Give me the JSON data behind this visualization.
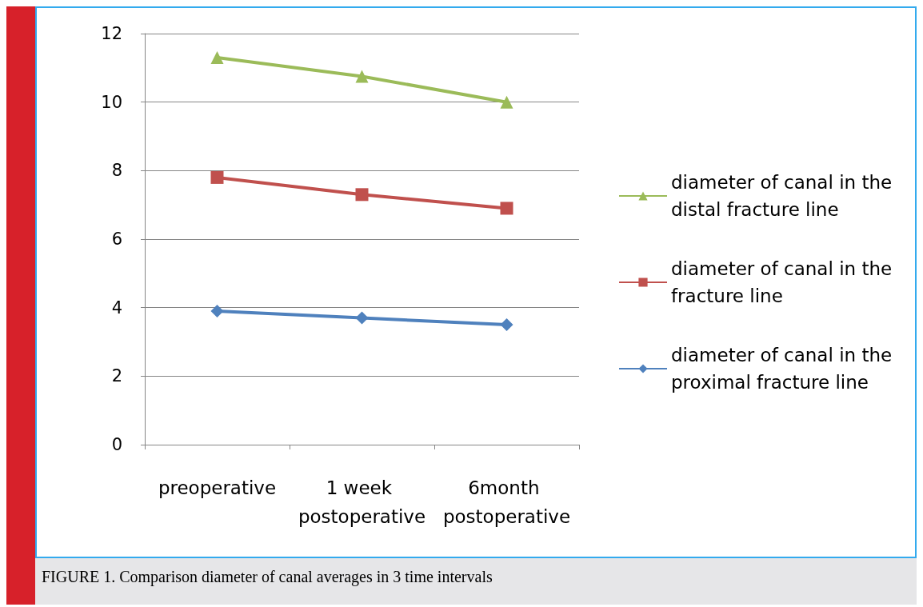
{
  "chart_data": {
    "type": "line",
    "categories": [
      "preoperative",
      "1 week postoperative",
      "6month postoperative"
    ],
    "series": [
      {
        "name": "diameter of canal in the distal fracture line",
        "color": "#9bbb59",
        "marker": "triangle",
        "values": [
          11.3,
          10.75,
          10.0
        ]
      },
      {
        "name": "diameter of canal in the fracture line",
        "color": "#c0504d",
        "marker": "square",
        "values": [
          7.8,
          7.3,
          6.9
        ]
      },
      {
        "name": "diameter of canal in the proximal fracture line",
        "color": "#4f81bd",
        "marker": "diamond",
        "values": [
          3.9,
          3.7,
          3.5
        ]
      }
    ],
    "ylim": [
      0,
      12
    ],
    "yticks": [
      0,
      2,
      4,
      6,
      8,
      10,
      12
    ],
    "grid": "y",
    "legend": "right",
    "line_style": "solid",
    "annotations": [
      "FIGURE 1. Comparison diameter of canal averages in 3 time intervals"
    ]
  }
}
